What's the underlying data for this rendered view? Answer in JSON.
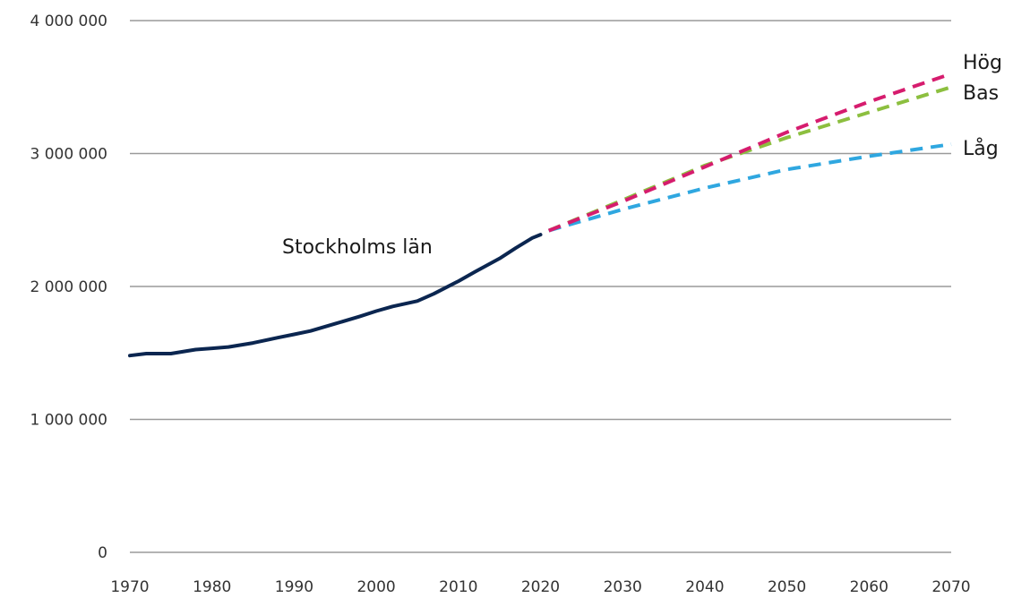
{
  "chart_data": {
    "type": "line",
    "title": "",
    "xlabel": "",
    "ylabel": "",
    "xlim": [
      1970,
      2070
    ],
    "ylim": [
      0,
      4000000
    ],
    "x_ticks": [
      "1970",
      "1980",
      "1990",
      "2000",
      "2010",
      "2020",
      "2030",
      "2040",
      "2050",
      "2060",
      "2070"
    ],
    "y_ticks": [
      "0",
      "1 000 000",
      "2 000 000",
      "3 000 000",
      "4 000 000"
    ],
    "grid": "horizontal",
    "colors": {
      "historical": "#0b2650",
      "high": "#d61c6e",
      "base": "#8cbf3f",
      "low": "#2fa7e0",
      "grid": "#9a9a9a"
    },
    "series": [
      {
        "name": "Stockholms län",
        "key": "historical",
        "style": "solid",
        "x": [
          1970,
          1972,
          1975,
          1978,
          1980,
          1982,
          1985,
          1988,
          1990,
          1992,
          1995,
          1998,
          2000,
          2002,
          2005,
          2007,
          2010,
          2012,
          2015,
          2017,
          2019,
          2020
        ],
        "y": [
          1480000,
          1495000,
          1495000,
          1525000,
          1535000,
          1545000,
          1575000,
          1615000,
          1640000,
          1665000,
          1720000,
          1775000,
          1815000,
          1850000,
          1890000,
          1945000,
          2040000,
          2110000,
          2210000,
          2290000,
          2365000,
          2390000
        ]
      },
      {
        "name": "Hög",
        "key": "high",
        "style": "dashed",
        "x": [
          2021,
          2030,
          2040,
          2050,
          2060,
          2070
        ],
        "y": [
          2420000,
          2640000,
          2900000,
          3160000,
          3390000,
          3600000
        ]
      },
      {
        "name": "Bas",
        "key": "base",
        "style": "dashed",
        "x": [
          2021,
          2030,
          2040,
          2050,
          2060,
          2070
        ],
        "y": [
          2420000,
          2650000,
          2910000,
          3120000,
          3310000,
          3500000
        ]
      },
      {
        "name": "Låg",
        "key": "low",
        "style": "dashed",
        "x": [
          2021,
          2030,
          2040,
          2050,
          2060,
          2070
        ],
        "y": [
          2420000,
          2580000,
          2740000,
          2880000,
          2980000,
          3070000
        ]
      }
    ]
  }
}
